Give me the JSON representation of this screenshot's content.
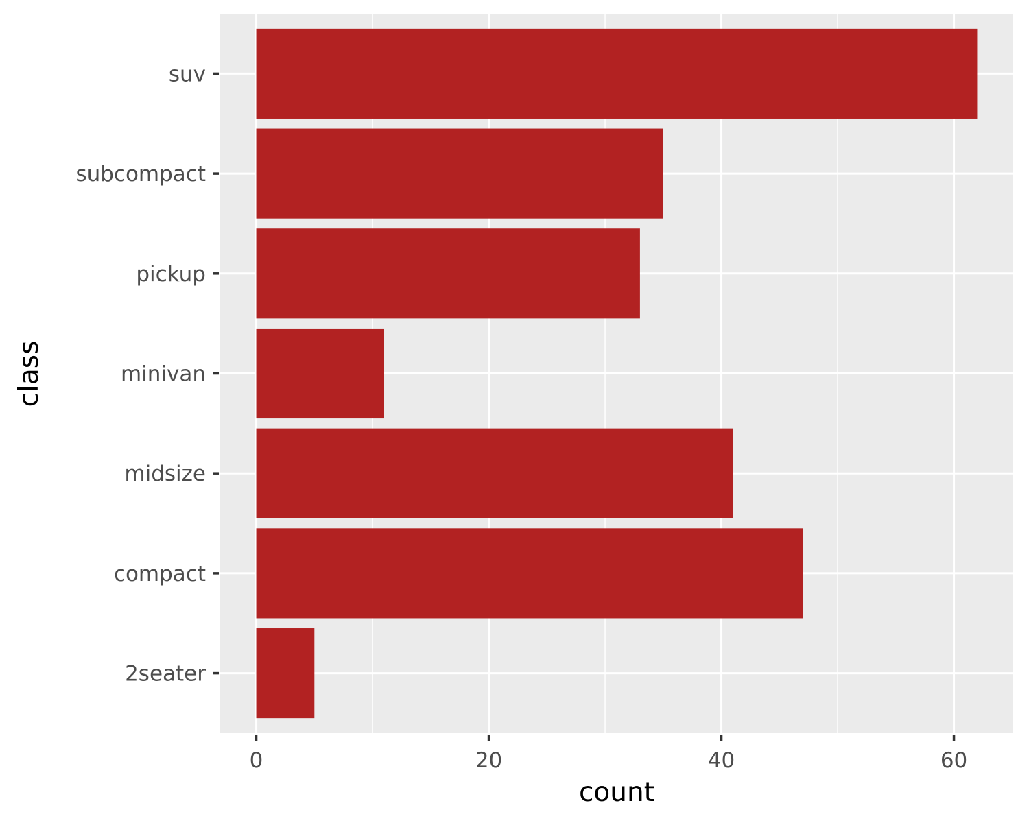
{
  "chart_data": {
    "type": "bar",
    "orientation": "horizontal",
    "categories": [
      "2seater",
      "compact",
      "midsize",
      "minivan",
      "pickup",
      "subcompact",
      "suv"
    ],
    "values": [
      5,
      47,
      41,
      11,
      33,
      35,
      62
    ],
    "xlabel": "count",
    "ylabel": "class",
    "xlim": [
      -3.1,
      65.1
    ],
    "x_ticks": [
      0,
      20,
      40,
      60
    ],
    "x_minor_ticks": [
      10,
      30,
      50
    ],
    "grid": true,
    "legend": "none",
    "colors": {
      "bar": "#b22222",
      "panel_background": "#ebebeb",
      "grid": "#ffffff",
      "tick_label": "#4d4d4d",
      "axis_title": "#000000"
    }
  }
}
